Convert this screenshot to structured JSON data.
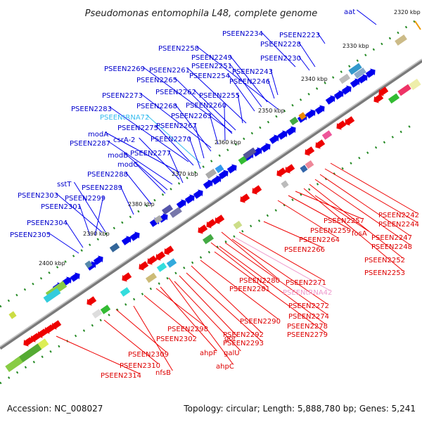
{
  "title": "Pseudomonas entomophila L48, complete genome",
  "footer": {
    "accession": "Accession: NC_008027",
    "topology": "Topology: circular; Length: 5,888,780 bp; Genes: 5,241"
  },
  "colors": {
    "forward_label": "#0000cc",
    "reverse_label": "#dd0000",
    "rna_forward_label": "#33bbee",
    "rna_reverse_label": "#ee99cc",
    "forward_arrow": "#0000ee",
    "reverse_arrow": "#ee0000",
    "backbone": "#777777",
    "ticks": "#228822"
  },
  "kbp_labels": [
    "2320 kbp",
    "2330 kbp",
    "2340 kbp",
    "2350 kbp",
    "2360 kbp",
    "2370 kbp",
    "2380 kbp",
    "2390 kbp",
    "2400 kbp"
  ],
  "forward_genes": [
    "aat",
    "PSEEN2223",
    "PSEEN2228",
    "PSEEN2230",
    "PSEEN2234",
    "PSEEN2258",
    "PSEEN2249",
    "PSEEN2251",
    "PSEEN2243",
    "PSEEN2246",
    "PSEEN2254",
    "PSEEN2261",
    "PSEEN2269",
    "PSEEN2265",
    "PSEEN2262",
    "PSEEN2255",
    "PSEEN2273",
    "PSEEN2260",
    "PSEEN2268",
    "PSEEN2263",
    "PSEEN2283",
    "PSEENtRNA72",
    "PSEEN2275",
    "PSEEN2267",
    "modA",
    "csrA-2",
    "PSEEN2270",
    "PSEEN2287",
    "modB",
    "PSEEN2277",
    "modC",
    "PSEEN2288",
    "sstT",
    "PSEEN2289",
    "PSEEN2303",
    "PSEEN2299",
    "PSEEN2301",
    "PSEEN2304",
    "PSEEN2305"
  ],
  "reverse_genes": [
    "PSEEN2242",
    "PSEEN2244",
    "PSEEN2247",
    "PSEEN2248",
    "PSEEN2252",
    "PSEEN2253",
    "PSEEN2257",
    "fosA",
    "PSEEN2259",
    "PSEEN2264",
    "PSEEN2266",
    "PSEEN2271",
    "PSEENtRNA42",
    "PSEEN2272",
    "PSEEN2274",
    "PSEEN2278",
    "PSEEN2279",
    "PSEEN2280",
    "PSEEN2281",
    "PSEEN2290",
    "PSEEN2292",
    "PSEEN2293",
    "gor",
    "galU",
    "ahpF",
    "ahpC",
    "PSEEN2298",
    "PSEEN2302",
    "PSEEN2309",
    "PSEEN2310",
    "nfsB",
    "PSEEN2314"
  ]
}
